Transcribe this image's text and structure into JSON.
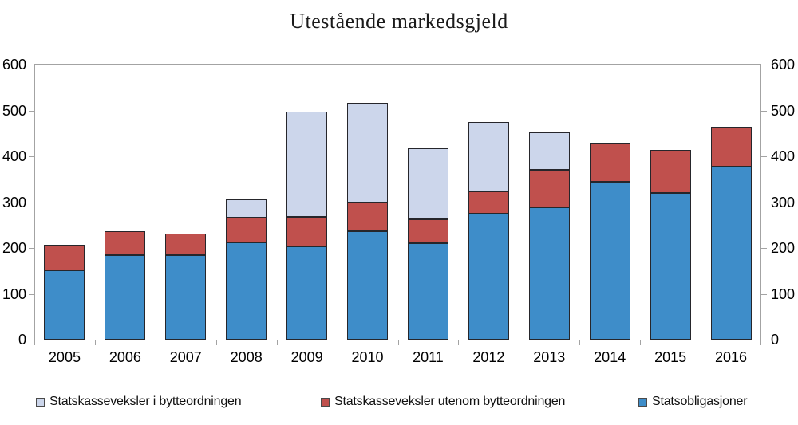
{
  "title": "Utestående markedsgjeld",
  "colors": {
    "statsobligasjoner": "#3E8DC9",
    "veksler_utenom": "#C0504D",
    "veksler_bytteordning": "#CCD6EB",
    "bar_border": "#26262B",
    "axis": "#A3A3A3",
    "text": "#000000"
  },
  "chart_data": {
    "type": "bar",
    "stacked": true,
    "title": "Utestående markedsgjeld",
    "categories": [
      "2005",
      "2006",
      "2007",
      "2008",
      "2009",
      "2010",
      "2011",
      "2012",
      "2013",
      "2014",
      "2015",
      "2016"
    ],
    "series": [
      {
        "name": "Statsobligasjoner",
        "color": "#3E8DC9",
        "values": [
          151,
          184,
          184,
          213,
          204,
          237,
          210,
          274,
          289,
          344,
          320,
          377
        ]
      },
      {
        "name": "Statskasseveksler utenom bytteordningen",
        "color": "#C0504D",
        "values": [
          56,
          53,
          47,
          53,
          63,
          63,
          52,
          50,
          82,
          85,
          94,
          87
        ]
      },
      {
        "name": "Statskasseveksler i bytteordningen",
        "color": "#CCD6EB",
        "values": [
          0,
          0,
          0,
          41,
          230,
          217,
          155,
          150,
          82,
          0,
          0,
          0
        ]
      }
    ],
    "stack_order": "bottom-to-top",
    "totals": [
      207,
      237,
      231,
      307,
      497,
      517,
      417,
      474,
      453,
      429,
      414,
      464
    ],
    "ylim": [
      0,
      600
    ],
    "yticks": [
      "0",
      "100",
      "200",
      "300",
      "400",
      "500",
      "600"
    ],
    "y_axis_sides": [
      "left",
      "right"
    ],
    "grid": false,
    "legend_position": "bottom",
    "legend_order": [
      2,
      1,
      0
    ]
  }
}
